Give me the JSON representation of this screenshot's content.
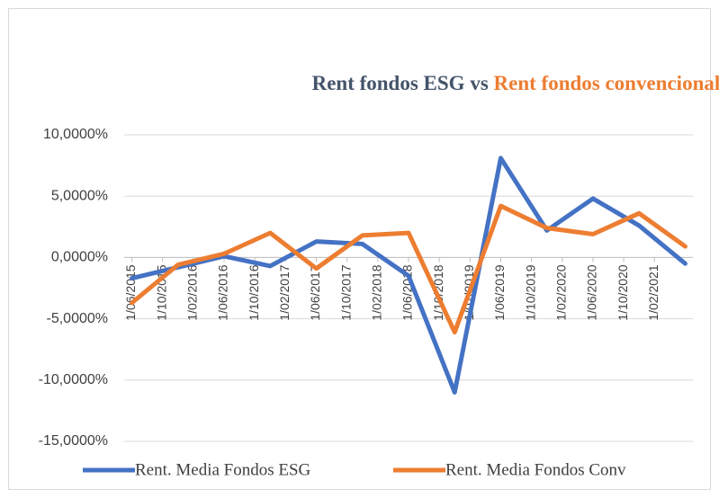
{
  "chart_data": {
    "type": "line",
    "title_parts": [
      "Rent fondos ESG vs",
      "Rent fondos convencionales"
    ],
    "title_colors": [
      "#44546a",
      "#ed7d31"
    ],
    "x": [
      "2015-06-01",
      "2015-12-01",
      "2016-06-01",
      "2016-12-01",
      "2017-06-01",
      "2017-12-01",
      "2018-06-01",
      "2018-12-01",
      "2019-06-01",
      "2019-12-01",
      "2020-06-01",
      "2020-12-01",
      "2021-06-01"
    ],
    "series": [
      {
        "name": "Rent. Media Fondos ESG",
        "color": "#4472c4",
        "values": [
          -1.7,
          -0.8,
          0.1,
          -0.7,
          1.3,
          1.1,
          -1.5,
          -11.0,
          8.1,
          2.2,
          4.8,
          2.6,
          -0.5
        ]
      },
      {
        "name": "Rent. Media Fondos Conv",
        "color": "#ed7d31",
        "values": [
          -3.7,
          -0.6,
          0.3,
          2.0,
          -0.9,
          1.8,
          2.0,
          -6.1,
          4.2,
          2.4,
          1.9,
          3.6,
          0.9
        ]
      }
    ],
    "xlim": [
      "2015-05-01",
      "2021-07-01"
    ],
    "xticks": [
      {
        "value": "2015-06-01",
        "label": "1/06/2015"
      },
      {
        "value": "2015-10-01",
        "label": "1/10/2015"
      },
      {
        "value": "2016-02-01",
        "label": "1/02/2016"
      },
      {
        "value": "2016-06-01",
        "label": "1/06/2016"
      },
      {
        "value": "2016-10-01",
        "label": "1/10/2016"
      },
      {
        "value": "2017-02-01",
        "label": "1/02/2017"
      },
      {
        "value": "2017-06-01",
        "label": "1/06/2017"
      },
      {
        "value": "2017-10-01",
        "label": "1/10/2017"
      },
      {
        "value": "2018-02-01",
        "label": "1/02/2018"
      },
      {
        "value": "2018-06-01",
        "label": "1/06/2018"
      },
      {
        "value": "2018-10-01",
        "label": "1/10/2018"
      },
      {
        "value": "2019-02-01",
        "label": "1/02/2019"
      },
      {
        "value": "2019-06-01",
        "label": "1/06/2019"
      },
      {
        "value": "2019-10-01",
        "label": "1/10/2019"
      },
      {
        "value": "2020-02-01",
        "label": "1/02/2020"
      },
      {
        "value": "2020-06-01",
        "label": "1/06/2020"
      },
      {
        "value": "2020-10-01",
        "label": "1/10/2020"
      },
      {
        "value": "2021-02-01",
        "label": "1/02/2021"
      }
    ],
    "ylim": [
      -15,
      10
    ],
    "yticks": [
      {
        "value": 10,
        "label": "10,0000%"
      },
      {
        "value": 5,
        "label": "5,0000%"
      },
      {
        "value": 0,
        "label": "0,0000%"
      },
      {
        "value": -5,
        "label": "-5,0000%"
      },
      {
        "value": -10,
        "label": "-10,0000%"
      },
      {
        "value": -15,
        "label": "-15,0000%"
      }
    ],
    "grid": true,
    "legend": "bottom"
  }
}
